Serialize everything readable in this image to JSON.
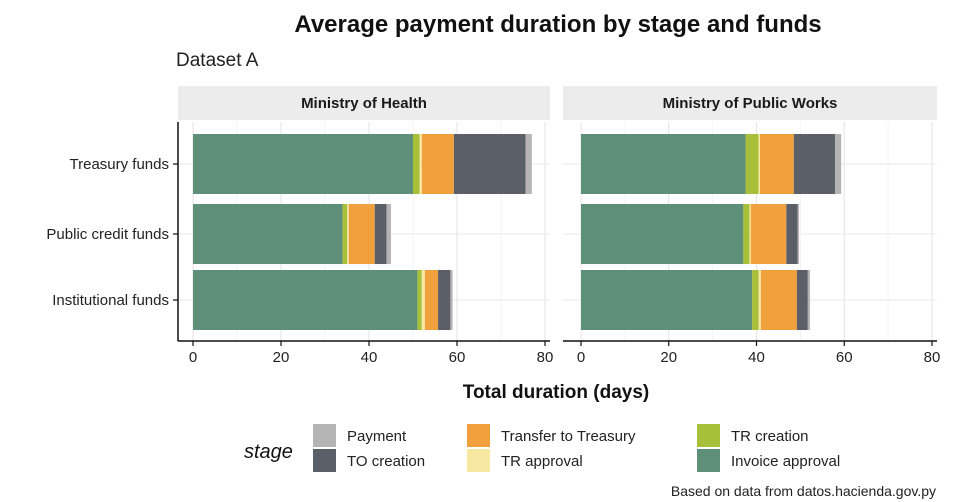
{
  "chart_data": {
    "type": "bar",
    "orientation": "horizontal",
    "stacked": true,
    "title": "Average payment duration by stage and funds",
    "subtitle": "Dataset A",
    "xlabel": "Total duration (days)",
    "ylabel": "",
    "xlim": [
      0,
      80
    ],
    "x_ticks": [
      "0",
      "20",
      "40",
      "60",
      "80"
    ],
    "caption": "Based on data from datos.hacienda.gov.py",
    "legend_title": "stage",
    "legend_position": "bottom",
    "grid": true,
    "categories": [
      "Treasury funds",
      "Public credit funds",
      "Institutional funds"
    ],
    "stages": [
      "Invoice approval",
      "TR creation",
      "TR approval",
      "Transfer to Treasury",
      "TO creation",
      "Payment"
    ],
    "stage_colors": {
      "Invoice approval": "#5e8f79",
      "TR creation": "#a8bf3a",
      "TR approval": "#f7e8a1",
      "Transfer to Treasury": "#f0a03c",
      "TO creation": "#5b5f67",
      "Payment": "#b4b4b4"
    },
    "legend_items": [
      {
        "label": "Payment",
        "stage": "Payment"
      },
      {
        "label": "TO creation",
        "stage": "TO creation"
      },
      {
        "label": "Transfer to Treasury",
        "stage": "Transfer to Treasury"
      },
      {
        "label": "TR approval",
        "stage": "TR approval"
      },
      {
        "label": "TR creation",
        "stage": "TR creation"
      },
      {
        "label": "Invoice approval",
        "stage": "Invoice approval"
      }
    ],
    "panels": [
      {
        "name": "Ministry of Health",
        "bars": [
          {
            "category": "Treasury funds",
            "segments": {
              "Invoice approval": 50,
              "TR creation": 1.5,
              "TR approval": 0.5,
              "Transfer to Treasury": 7.3,
              "TO creation": 16.3,
              "Payment": 1.4
            }
          },
          {
            "category": "Public credit funds",
            "segments": {
              "Invoice approval": 34,
              "TR creation": 1,
              "TR approval": 0.4,
              "Transfer to Treasury": 5.9,
              "TO creation": 2.7,
              "Payment": 1
            }
          },
          {
            "category": "Institutional funds",
            "segments": {
              "Invoice approval": 51,
              "TR creation": 1,
              "TR approval": 0.7,
              "Transfer to Treasury": 3,
              "TO creation": 2.8,
              "Payment": 0.5
            }
          }
        ]
      },
      {
        "name": "Ministry of Public Works",
        "bars": [
          {
            "category": "Treasury funds",
            "segments": {
              "Invoice approval": 37.5,
              "TR creation": 3,
              "TR approval": 0.3,
              "Transfer to Treasury": 7.7,
              "TO creation": 9.4,
              "Payment": 1.4
            }
          },
          {
            "category": "Public credit funds",
            "segments": {
              "Invoice approval": 37,
              "TR creation": 1.4,
              "TR approval": 0.3,
              "Transfer to Treasury": 8.1,
              "TO creation": 2.6,
              "Payment": 0.3
            }
          },
          {
            "category": "Institutional funds",
            "segments": {
              "Invoice approval": 39,
              "TR creation": 1.5,
              "TR approval": 0.5,
              "Transfer to Treasury": 8.2,
              "TO creation": 2.5,
              "Payment": 0.5
            }
          }
        ]
      }
    ]
  }
}
